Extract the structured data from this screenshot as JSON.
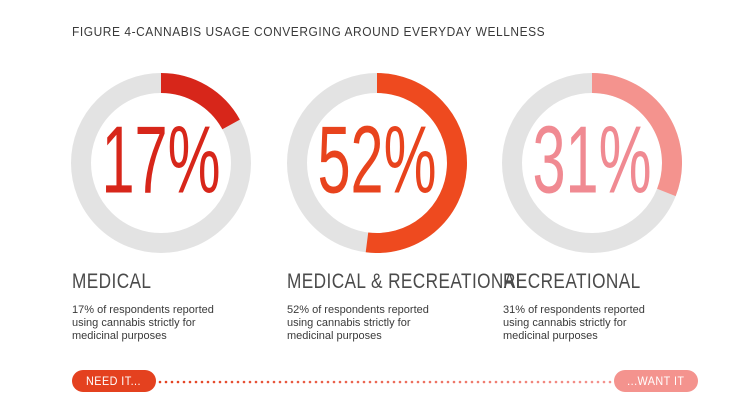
{
  "figure": {
    "title": "FIGURE 4-CANNABIS USAGE CONVERGING AROUND EVERYDAY WELLNESS"
  },
  "chart_data": {
    "type": "pie",
    "title": "FIGURE 4-CANNABIS USAGE CONVERGING AROUND EVERYDAY WELLNESS",
    "series": [
      {
        "name": "MEDICAL",
        "value": 17,
        "label": "17%",
        "color": "#d7261a",
        "text_color": "#d7261a",
        "description": "17% of respondents reported using cannabis strictly for medicinal purposes"
      },
      {
        "name": "MEDICAL & RECREATIONAL",
        "value": 52,
        "label": "52%",
        "color": "#ee4a1f",
        "text_color": "#e8431d",
        "description": "52% of respondents reported using cannabis strictly for medicinal purposes"
      },
      {
        "name": "RECREATIONAL",
        "value": 31,
        "label": "31%",
        "color": "#f4938e",
        "text_color": "#f08a92",
        "description": "31% of respondents reported using cannabis strictly for medicinal purposes"
      }
    ],
    "track_color": "#e3e3e3"
  },
  "scale": {
    "left_label": "NEED IT...",
    "right_label": "...WANT IT",
    "left_color": "#e4411f",
    "right_color": "#f4938e"
  }
}
